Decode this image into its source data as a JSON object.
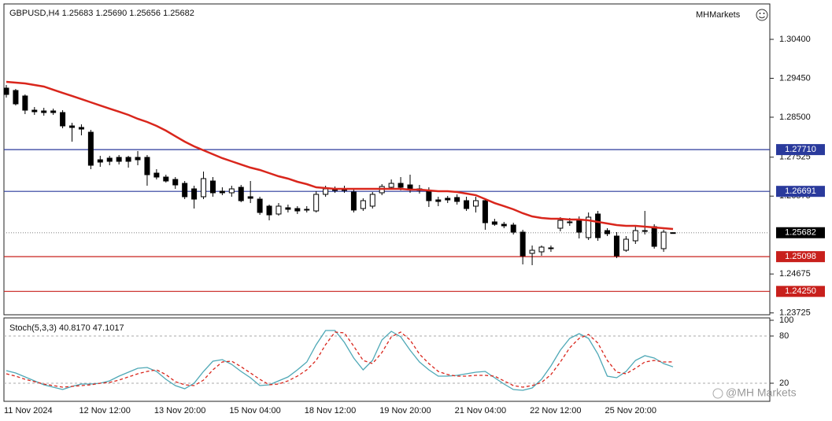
{
  "chart_data": [
    {
      "type": "candlestick",
      "title": "GBPUSD,H4  1.25683 1.25690 1.25656 1.25682",
      "brand": "MHMarkets",
      "watermark": "@MH Markets",
      "categories": [
        "11 Nov 2024",
        null,
        null,
        null,
        null,
        null,
        null,
        null,
        "12 Nov 12:00",
        null,
        null,
        null,
        null,
        null,
        null,
        null,
        "13 Nov 20:00",
        null,
        null,
        null,
        null,
        null,
        null,
        null,
        "15 Nov 04:00",
        null,
        null,
        null,
        null,
        null,
        null,
        null,
        "18 Nov 12:00",
        null,
        null,
        null,
        null,
        null,
        null,
        null,
        "19 Nov 20:00",
        null,
        null,
        null,
        null,
        null,
        null,
        null,
        "21 Nov 04:00",
        null,
        null,
        null,
        null,
        null,
        null,
        null,
        "22 Nov 12:00",
        null,
        null,
        null,
        null,
        null,
        null,
        null,
        "25 Nov 20:00",
        null,
        null,
        null,
        null,
        null,
        null,
        null
      ],
      "open": [
        1.2921,
        1.29152,
        1.29018,
        1.28672,
        1.28653,
        1.28653,
        1.28614,
        1.28288,
        1.2825,
        1.28134,
        1.27462,
        1.27501,
        1.2752,
        1.2752,
        1.2752,
        1.2752,
        1.27136,
        1.2704,
        1.26982,
        1.26886,
        1.26752,
        1.2656,
        1.26944,
        1.26694,
        1.26656,
        1.2679,
        1.2656,
        1.26502,
        1.2633,
        1.26138,
        1.26291,
        1.26272,
        1.26234,
        1.26214,
        1.26618,
        1.26752,
        1.26752,
        1.26675,
        1.26272,
        1.2633,
        1.26656,
        1.2679,
        1.26886,
        1.26848,
        1.26752,
        1.26714,
        1.26483,
        1.26522,
        1.26541,
        1.26464,
        1.2633,
        1.26464,
        1.25946,
        1.25888,
        1.25869,
        1.25696,
        1.25178,
        1.25216,
        1.25293,
        1.25792,
        1.25926,
        1.25984,
        1.25562,
        1.26138,
        1.25734,
        1.256,
        1.25254,
        1.25485,
        1.25734,
        1.2583,
        1.25293,
        1.25683
      ],
      "high": [
        1.29286,
        1.2919,
        1.29056,
        1.28749,
        1.2873,
        1.2871,
        1.28672,
        1.28365,
        1.28326,
        1.28192,
        1.27558,
        1.27558,
        1.27578,
        1.27558,
        1.27674,
        1.27578,
        1.27232,
        1.27098,
        1.2704,
        1.26944,
        1.26829,
        1.27174,
        1.2704,
        1.2679,
        1.26829,
        1.26848,
        1.26944,
        1.2656,
        1.26368,
        1.26406,
        1.26368,
        1.2633,
        1.2633,
        1.26694,
        1.26829,
        1.2681,
        1.26829,
        1.26752,
        1.26522,
        1.26675,
        1.26867,
        1.26982,
        1.2704,
        1.27098,
        1.26848,
        1.2679,
        1.2656,
        1.26579,
        1.26618,
        1.2656,
        1.2656,
        1.26522,
        1.26022,
        1.25946,
        1.25926,
        1.25754,
        1.2537,
        1.2537,
        1.2537,
        1.26061,
        1.26042,
        1.2608,
        1.26176,
        1.26214,
        1.25792,
        1.25696,
        1.256,
        1.2583,
        1.26214,
        1.25888,
        1.25754,
        1.2569
      ],
      "low": [
        1.28979,
        1.28787,
        1.28576,
        1.28557,
        1.28538,
        1.28557,
        1.2823,
        1.27904,
        1.28058,
        1.27232,
        1.2729,
        1.27328,
        1.27347,
        1.2727,
        1.27328,
        1.26829,
        1.26982,
        1.26906,
        1.26752,
        1.26502,
        1.26272,
        1.26502,
        1.2656,
        1.26598,
        1.2656,
        1.26426,
        1.26406,
        1.26118,
        1.25984,
        1.26099,
        1.26176,
        1.26138,
        1.26176,
        1.26176,
        1.2656,
        1.26656,
        1.26656,
        1.26176,
        1.26214,
        1.26272,
        1.26598,
        1.26752,
        1.26714,
        1.26656,
        1.26637,
        1.2631,
        1.2633,
        1.26406,
        1.26368,
        1.26214,
        1.26176,
        1.25754,
        1.2585,
        1.25792,
        1.25638,
        1.24909,
        1.2489,
        1.2512,
        1.25216,
        1.25715,
        1.2585,
        1.25542,
        1.25504,
        1.25485,
        1.256,
        1.25062,
        1.25216,
        1.25408,
        1.25638,
        1.25293,
        1.25216,
        1.25656
      ],
      "close": [
        1.29056,
        1.28826,
        1.28672,
        1.28634,
        1.28614,
        1.28614,
        1.28288,
        1.2825,
        1.28211,
        1.27328,
        1.27405,
        1.27424,
        1.27424,
        1.27424,
        1.27462,
        1.27098,
        1.2704,
        1.26944,
        1.26848,
        1.2656,
        1.26502,
        1.27002,
        1.26656,
        1.26656,
        1.26752,
        1.26464,
        1.26522,
        1.26176,
        1.26118,
        1.2633,
        1.26253,
        1.26214,
        1.26253,
        1.26618,
        1.26752,
        1.26714,
        1.26714,
        1.26234,
        1.26464,
        1.26618,
        1.2681,
        1.26886,
        1.2679,
        1.26733,
        1.26714,
        1.26464,
        1.26445,
        1.26483,
        1.26445,
        1.26272,
        1.26464,
        1.25926,
        1.25888,
        1.2585,
        1.25696,
        1.2512,
        1.25254,
        1.25331,
        1.25312,
        1.25984,
        1.25946,
        1.25696,
        1.26061,
        1.25562,
        1.25658,
        1.2512,
        1.25523,
        1.25734,
        1.25715,
        1.2535,
        1.25696,
        1.25682
      ],
      "up_color": "#ffffff",
      "down_color": "#000000",
      "overlays": [
        {
          "color": "#d9261c",
          "values": [
            1.29363,
            1.29344,
            1.29325,
            1.29286,
            1.29248,
            1.29171,
            1.29094,
            1.29018,
            1.28941,
            1.28864,
            1.28787,
            1.2871,
            1.28634,
            1.28557,
            1.28461,
            1.28384,
            1.28288,
            1.28173,
            1.28038,
            1.27904,
            1.27789,
            1.27693,
            1.27597,
            1.27501,
            1.27424,
            1.27347,
            1.2727,
            1.27213,
            1.27136,
            1.27059,
            1.27002,
            1.26925,
            1.26867,
            1.2679,
            1.26771,
            1.26752,
            1.26752,
            1.26752,
            1.26752,
            1.26752,
            1.26752,
            1.26752,
            1.26752,
            1.26733,
            1.26733,
            1.26714,
            1.26694,
            1.26694,
            1.26675,
            1.26637,
            1.26598,
            1.26502,
            1.26406,
            1.2633,
            1.26253,
            1.26157,
            1.2608,
            1.26042,
            1.26022,
            1.26022,
            1.26003,
            1.26003,
            1.25984,
            1.25946,
            1.25907,
            1.25869,
            1.2585,
            1.2585,
            1.2583,
            1.25811,
            1.25792,
            1.25773
          ]
        }
      ],
      "ylim": [
        1.2368,
        1.31264
      ],
      "yticks": [
        {
          "value": 1.304,
          "label": "1.30400"
        },
        {
          "value": 1.2945,
          "label": "1.29450"
        },
        {
          "value": 1.285,
          "label": "1.28500"
        },
        {
          "value": 1.27525,
          "label": "1.27525"
        },
        {
          "value": 1.26575,
          "label": "1.26575"
        },
        {
          "value": 1.24675,
          "label": "1.24675"
        },
        {
          "value": 1.23725,
          "label": "1.23725"
        }
      ],
      "levels": [
        {
          "value": 1.2771,
          "label": "1.27710",
          "color": "#2a3a9c",
          "style": "solid"
        },
        {
          "value": 1.26691,
          "label": "1.26691",
          "color": "#2a3a9c",
          "style": "solid"
        },
        {
          "value": 1.25682,
          "label": "1.25682",
          "color": "#000000",
          "style": "dotted"
        },
        {
          "value": 1.25098,
          "label": "1.25098",
          "color": "#c8201c",
          "style": "solid"
        },
        {
          "value": 1.2425,
          "label": "1.24250",
          "color": "#c8201c",
          "style": "solid"
        }
      ]
    },
    {
      "type": "line",
      "title": "Stoch(5,3,3) 40.8170 47.1017",
      "series": [
        {
          "color": "#4ea8b6",
          "dashed": false,
          "values": [
            36,
            33,
            28,
            23,
            18,
            15,
            12,
            16,
            19,
            19,
            20,
            23,
            29,
            34,
            39,
            40,
            35,
            25,
            17,
            13,
            20,
            35,
            48,
            50,
            44,
            35,
            27,
            17,
            18,
            23,
            28,
            37,
            47,
            69,
            87,
            87,
            72,
            52,
            37,
            49,
            75,
            86,
            79,
            62,
            47,
            37,
            29,
            29,
            30,
            32,
            34,
            35,
            27,
            19,
            12,
            11,
            14,
            25,
            42,
            62,
            77,
            83,
            77,
            57,
            29,
            27,
            35,
            49,
            55,
            52,
            45,
            40.817
          ]
        },
        {
          "color": "#d9261c",
          "dashed": true,
          "values": [
            32,
            29,
            25,
            22,
            19,
            17,
            15,
            16,
            17,
            18,
            20,
            21,
            24,
            28,
            32,
            35,
            37,
            31,
            22,
            18,
            17,
            24,
            37,
            47,
            48,
            41,
            33,
            25,
            18,
            19,
            23,
            29,
            37,
            49,
            69,
            85,
            84,
            67,
            49,
            45,
            59,
            79,
            85,
            75,
            57,
            45,
            35,
            31,
            29,
            29,
            30,
            30,
            29,
            23,
            17,
            15,
            17,
            21,
            31,
            47,
            65,
            77,
            82,
            71,
            49,
            34,
            32,
            39,
            47,
            49,
            47,
            47.1017
          ]
        }
      ],
      "ylim": [
        -3,
        102
      ],
      "yticks": [
        100,
        80,
        20
      ],
      "level_lines": [
        80,
        20
      ]
    }
  ]
}
